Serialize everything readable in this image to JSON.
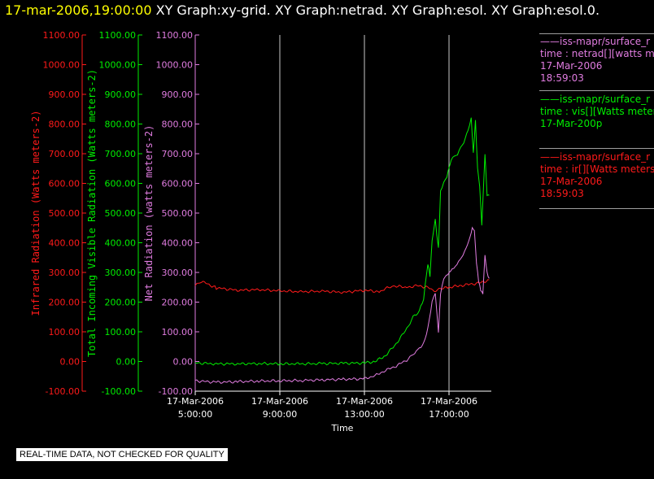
{
  "title": {
    "time": "17-mar-2006,19:00:00",
    "graphs": "XY Graph:xy-grid.  XY Graph:netrad.  XY Graph:esol.  XY Graph:esol.0."
  },
  "legend": [
    {
      "line1": "——iss-mapr/surface_r",
      "line2": "time : netrad[][watts me",
      "line3": "17-Mar-2006",
      "line4": "18:59:03",
      "color": "#e07ce0"
    },
    {
      "line1": "——iss-mapr/surface_r",
      "line2": "time : vis[][Watts meter",
      "line3": "17-Mar-200p",
      "line4": "",
      "color": "#00ee00"
    },
    {
      "line1": "——iss-mapr/surface_r",
      "line2": "time : ir[][Watts meters",
      "line3": "17-Mar-2006",
      "line4": "18:59:03",
      "color": "#ff1a1a"
    }
  ],
  "quality_note": "REAL-TIME DATA, NOT CHECKED FOR QUALITY",
  "chart_data": {
    "type": "line",
    "xlabel": "Time",
    "x_ticks": [
      {
        "date": "17-Mar-2006",
        "time": "5:00:00",
        "hour": 5
      },
      {
        "date": "17-Mar-2006",
        "time": "9:00:00",
        "hour": 9
      },
      {
        "date": "17-Mar-2006",
        "time": "13:00:00",
        "hour": 13
      },
      {
        "date": "17-Mar-2006",
        "time": "17:00:00",
        "hour": 17
      }
    ],
    "xlim_hours": [
      5,
      19
    ],
    "ylim": [
      -100,
      1100
    ],
    "y_ticks": [
      "-100.00",
      "0.00",
      "100.00",
      "200.00",
      "300.00",
      "400.00",
      "500.00",
      "600.00",
      "700.00",
      "800.00",
      "900.00",
      "1000.00",
      "1100.00"
    ],
    "grid": "vertical lines at x ticks",
    "axes": [
      {
        "name": "ir",
        "label": "Infrared Radiation (Watts meters-2)",
        "color": "#ff1a1a"
      },
      {
        "name": "vis",
        "label": "Total Incoming Visible Radiation (Watts meters-2)",
        "color": "#00ee00"
      },
      {
        "name": "netrad",
        "label": "Net Radiation (watts meters-2)",
        "color": "#e07ce0"
      }
    ],
    "series": [
      {
        "key": "ir",
        "color": "#ff1a1a",
        "x": [
          5.0,
          5.3,
          6,
          7,
          8,
          9,
          10,
          11,
          12,
          13,
          13.7,
          14.3,
          15,
          15.5,
          16,
          16.3,
          16.6,
          17,
          17.5,
          18,
          18.5,
          18.9
        ],
        "y": [
          255,
          270,
          248,
          240,
          242,
          238,
          235,
          237,
          233,
          240,
          235,
          255,
          250,
          255,
          250,
          235,
          245,
          250,
          255,
          260,
          265,
          275
        ]
      },
      {
        "key": "vis",
        "color": "#00ee00",
        "x": [
          5.0,
          6,
          7,
          8,
          9,
          10,
          11,
          12,
          13,
          13.5,
          14,
          14.5,
          15,
          15.3,
          15.6,
          15.8,
          16,
          16.1,
          16.2,
          16.35,
          16.5,
          16.6,
          16.75,
          16.9,
          17.1,
          17.4,
          17.7,
          17.9,
          18.05,
          18.15,
          18.25,
          18.35,
          18.45,
          18.55,
          18.7,
          18.8,
          18.9
        ],
        "y": [
          -5,
          -8,
          -8,
          -7,
          -8,
          -8,
          -7,
          -6,
          -5,
          0,
          20,
          60,
          110,
          150,
          170,
          210,
          330,
          290,
          410,
          480,
          380,
          570,
          600,
          620,
          680,
          700,
          740,
          780,
          820,
          700,
          810,
          650,
          590,
          460,
          700,
          560,
          560
        ]
      },
      {
        "key": "netrad",
        "color": "#e07ce0",
        "x": [
          5.0,
          6,
          7,
          8,
          9,
          10,
          11,
          12,
          13,
          13.5,
          14,
          14.5,
          15,
          15.3,
          15.6,
          15.8,
          16,
          16.2,
          16.35,
          16.5,
          16.6,
          16.75,
          17,
          17.3,
          17.6,
          17.8,
          18,
          18.1,
          18.2,
          18.3,
          18.4,
          18.5,
          18.6,
          18.7,
          18.8,
          18.9
        ],
        "y": [
          -65,
          -70,
          -68,
          -66,
          -65,
          -64,
          -62,
          -60,
          -58,
          -48,
          -30,
          -15,
          5,
          25,
          45,
          60,
          110,
          200,
          230,
          100,
          230,
          280,
          300,
          320,
          350,
          380,
          420,
          450,
          440,
          330,
          270,
          240,
          230,
          360,
          300,
          280
        ]
      }
    ]
  }
}
